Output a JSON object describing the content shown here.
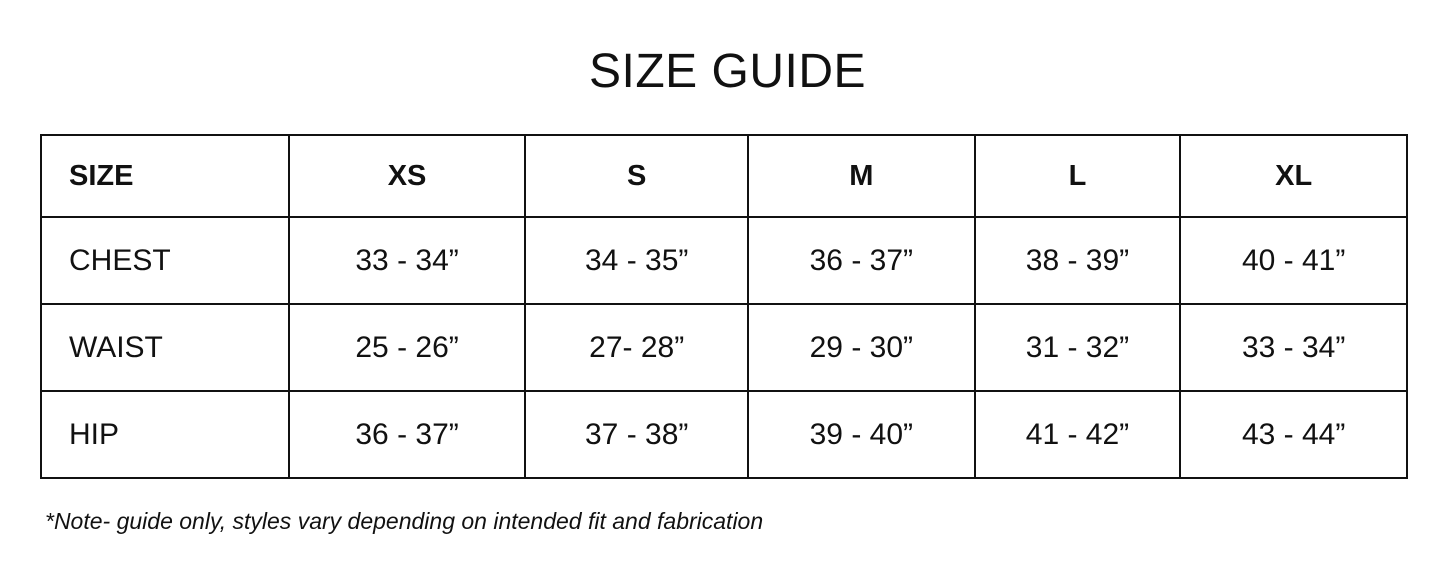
{
  "title": "SIZE GUIDE",
  "table": {
    "headers": [
      "SIZE",
      "XS",
      "S",
      "M",
      "L",
      "XL"
    ],
    "rows": [
      [
        "CHEST",
        "33 - 34”",
        "34 - 35”",
        "36 - 37”",
        "38 - 39”",
        "40 - 41”"
      ],
      [
        "WAIST",
        "25 - 26”",
        "27- 28”",
        "29 - 30”",
        "31 - 32”",
        "33 - 34”"
      ],
      [
        "HIP",
        "36 - 37”",
        "37 - 38”",
        "39 - 40”",
        "41 - 42”",
        "43 - 44”"
      ]
    ]
  },
  "note": "*Note- guide only, styles vary depending on intended fit and fabrication"
}
